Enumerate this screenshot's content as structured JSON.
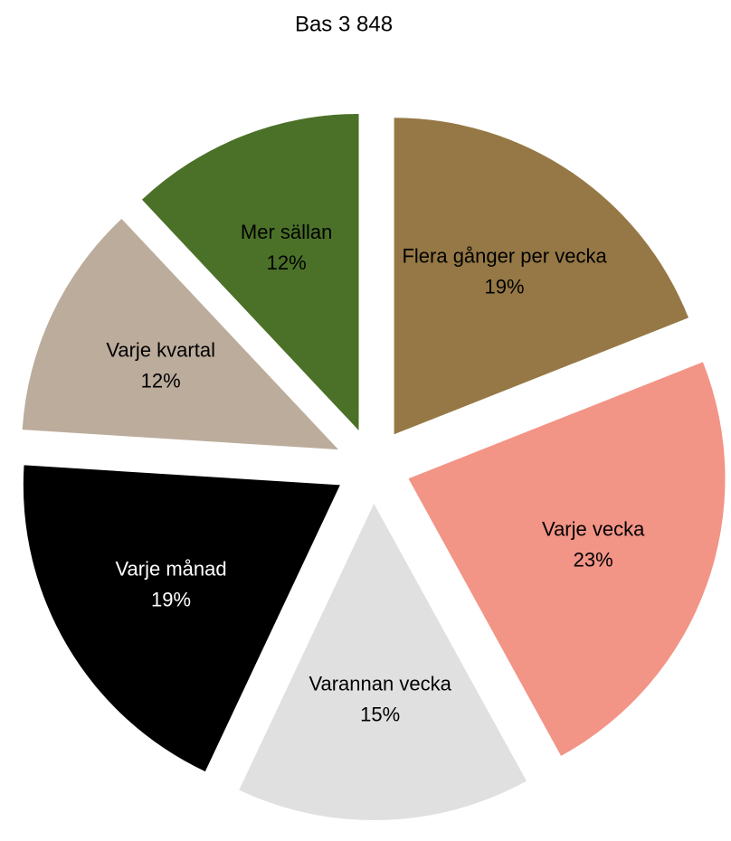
{
  "chart_data": {
    "type": "pie",
    "title": "Bas 3 848",
    "categories": [
      "Flera gånger per vecka",
      "Varje vecka",
      "Varannan vecka",
      "Varje månad",
      "Varje kvartal",
      "Mer sällan"
    ],
    "values": [
      19,
      23,
      15,
      19,
      12,
      12
    ],
    "value_labels": [
      "19%",
      "23%",
      "15%",
      "19%",
      "12%",
      "12%"
    ],
    "colors": [
      "#957845",
      "#f29486",
      "#e0e0e0",
      "#000000",
      "#bcac9c",
      "#4b7128"
    ],
    "exploded": true
  }
}
